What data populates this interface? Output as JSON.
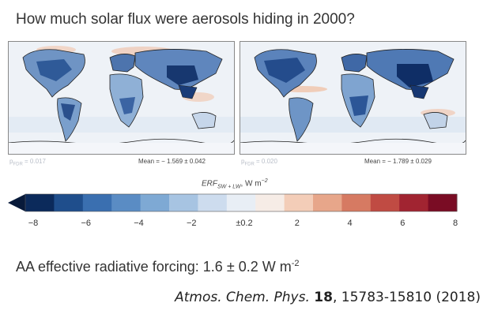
{
  "title": "How much solar flux were aerosols hiding in 2000?",
  "panels": [
    {
      "p_label": "p",
      "p_sub": "FDR",
      "p_value": "= 0.017",
      "mean_text": "Mean = − 1.569 ± 0.042"
    },
    {
      "p_label": "p",
      "p_sub": "FDR",
      "p_value": "= 0.020",
      "mean_text": "Mean = − 1.789 ± 0.029"
    }
  ],
  "colorbar": {
    "label_main": "ERF",
    "label_sub": "SW + LW",
    "label_unit": ", W m",
    "label_exp": "−2",
    "ticks": [
      "−8",
      "−6",
      "−4",
      "−2",
      "±0.2",
      "2",
      "4",
      "6",
      "8"
    ],
    "colors": [
      "#0b2a5b",
      "#1f4e8c",
      "#3a6fb0",
      "#5a8cc4",
      "#7ea9d4",
      "#a7c4e2",
      "#cddcee",
      "#e8eef5",
      "#f6ece6",
      "#f3cdb8",
      "#e7a68a",
      "#d67a62",
      "#c04b43",
      "#a12431",
      "#7a0c24"
    ]
  },
  "forcing": {
    "text": "AA effective radiative forcing: 1.6 ± 0.2 W m",
    "exp": "-2"
  },
  "citation": {
    "journal": "Atmos. Chem. Phys.",
    "volume": "18",
    "rest": ", 15783-15810 (2018)"
  }
}
